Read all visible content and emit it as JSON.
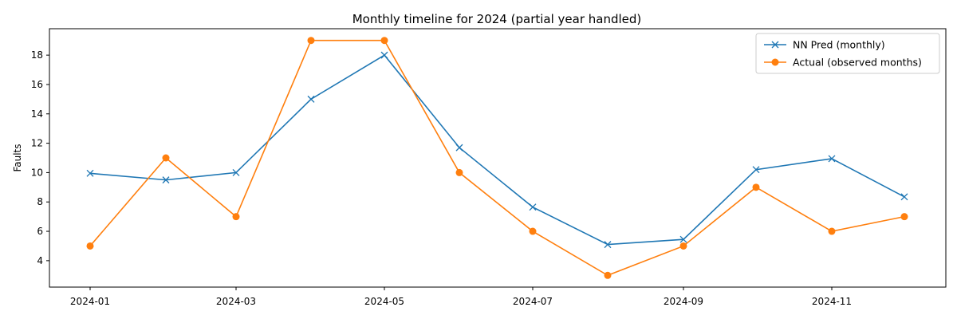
{
  "chart_data": {
    "type": "line",
    "title": "Monthly timeline for 2024 (partial year handled)",
    "xlabel": "",
    "ylabel": "Faults",
    "x": [
      "2024-01",
      "2024-02",
      "2024-03",
      "2024-04",
      "2024-05",
      "2024-06",
      "2024-07",
      "2024-08",
      "2024-09",
      "2024-10",
      "2024-11",
      "2024-12"
    ],
    "x_ticks": [
      "2024-01",
      "2024-03",
      "2024-05",
      "2024-07",
      "2024-09",
      "2024-11"
    ],
    "y_ticks": [
      4,
      6,
      8,
      10,
      12,
      14,
      16,
      18
    ],
    "ylim": [
      2.2,
      19.8
    ],
    "grid": false,
    "legend_position": "upper right",
    "series": [
      {
        "name": "NN Pred (monthly)",
        "color": "#1f77b4",
        "marker": "x",
        "values": [
          9.95,
          9.5,
          10.0,
          15.0,
          18.0,
          11.7,
          7.65,
          5.1,
          5.45,
          10.2,
          10.95,
          8.35
        ]
      },
      {
        "name": "Actual (observed months)",
        "color": "#ff7f0e",
        "marker": "o",
        "values": [
          5,
          11,
          7,
          19,
          19,
          10,
          6,
          3,
          5,
          9,
          6,
          7
        ]
      }
    ]
  }
}
